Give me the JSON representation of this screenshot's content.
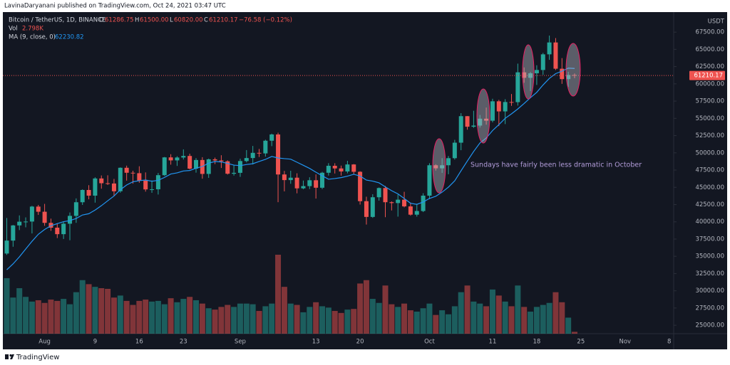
{
  "header": {
    "publisher": "LavinaDaryanani published on TradingView.com, Oct 24, 2021 03:47 UTC"
  },
  "footer": {
    "brand": "TradingView"
  },
  "chart_data": {
    "type": "candlestick",
    "title": "Bitcoin / TetherUS, 1D, BINANCE",
    "legend": {
      "o": "O",
      "h": "H",
      "l": "L",
      "c": "C",
      "high": "61500.00",
      "low": "60820.00",
      "change": "−76.58 (−0.12%)",
      "vol": "Vol",
      "volume_label": "2.798K"
    },
    "up_color": "#26a69a",
    "down_color": "#ef5350",
    "price_unit": "USDT",
    "annotation": "Sundays have fairly been less dramatic in October",
    "categories": [
      null,
      null,
      null,
      null,
      null,
      null,
      "Aug",
      null,
      null,
      null,
      null,
      null,
      null,
      null,
      "9",
      null,
      null,
      null,
      null,
      null,
      null,
      "16",
      null,
      null,
      null,
      null,
      null,
      null,
      "23",
      null,
      null,
      null,
      null,
      null,
      null,
      null,
      null,
      "Sep",
      null,
      null,
      null,
      null,
      null,
      null,
      null,
      null,
      null,
      null,
      null,
      "13",
      null,
      null,
      null,
      null,
      null,
      null,
      "20",
      null,
      null,
      null,
      null,
      null,
      null,
      null,
      null,
      null,
      null,
      "Oct",
      null,
      null,
      null,
      null,
      null,
      null,
      null,
      null,
      null,
      "11",
      null,
      null,
      null,
      null,
      null,
      null,
      "18",
      null,
      null,
      null,
      null,
      null,
      null,
      "25",
      null,
      null,
      null,
      null,
      null,
      null,
      "Nov",
      null,
      null,
      null,
      null,
      null,
      null,
      "8"
    ],
    "open": [
      35399,
      37276,
      39475,
      40016,
      40036,
      42206,
      41461,
      39846,
      39147,
      38207,
      39723,
      40862,
      42836,
      44614,
      43792,
      46284,
      45593,
      45551,
      44429,
      47834,
      47112,
      47047,
      45972,
      44696,
      44715,
      46760,
      49339,
      48905,
      49321,
      49546,
      47706,
      48960,
      46942,
      49058,
      48897,
      48767,
      46970,
      47100,
      48810,
      49246,
      49999,
      49915,
      51756,
      52663,
      46863,
      46048,
      46395,
      44851,
      45174,
      46026,
      44940,
      47112,
      48121,
      47738,
      47300,
      48314,
      47250,
      42990,
      40708,
      43560,
      44895,
      42840,
      42717,
      43208,
      42235,
      41034,
      41564,
      43791,
      48199,
      47753,
      48200,
      49224,
      51471,
      55315,
      53785,
      53951,
      54949,
      54659,
      57471,
      56006,
      57367,
      57347,
      61672,
      60875,
      61528,
      62009,
      64280,
      66001,
      62193,
      60688,
      61286.75,
      null,
      null,
      null,
      null,
      null,
      null,
      null,
      null,
      null,
      null,
      null,
      null,
      null,
      null,
      null
    ],
    "high": [
      40550,
      39543,
      40925,
      40640,
      42316,
      42448,
      42599,
      40459,
      39780,
      39969,
      41350,
      43392,
      44700,
      45310,
      46454,
      46718,
      46743,
      46218,
      47886,
      48144,
      47400,
      48053,
      47161,
      46000,
      47078,
      49400,
      49800,
      49500,
      50500,
      49875,
      49226,
      49368,
      49165,
      49309,
      49653,
      48907,
      48246,
      49150,
      50400,
      51000,
      50558,
      51900,
      52780,
      52920,
      47381,
      47400,
      47031,
      45980,
      46460,
      46876,
      47250,
      48500,
      48486,
      48150,
      48843,
      48372,
      47328,
      43639,
      44000,
      44978,
      45200,
      42966,
      43950,
      44350,
      42780,
      42620,
      44141,
      48495,
      48350,
      49228,
      49536,
      51886,
      55750,
      55332,
      56100,
      55489,
      56561,
      57839,
      57680,
      57777,
      58532,
      62933,
      62378,
      61718,
      62695,
      64486,
      67000,
      66639,
      63732,
      61747,
      61500,
      null,
      null,
      null,
      null,
      null,
      null,
      null,
      null,
      null,
      null,
      null,
      null,
      null,
      null,
      null
    ],
    "low": [
      35205,
      36383,
      38800,
      39200,
      38313,
      41000,
      39422,
      38691,
      37642,
      37508,
      37332,
      39853,
      42446,
      43261,
      42779,
      44800,
      45341,
      43770,
      44217,
      45971,
      45525,
      45660,
      44376,
      44203,
      43955,
      46644,
      48285,
      48102,
      49028,
      47600,
      47123,
      46250,
      46370,
      48370,
      47801,
      46850,
      46700,
      46512,
      48620,
      48316,
      49400,
      49450,
      50969,
      42843,
      44412,
      45513,
      44132,
      44722,
      44742,
      43370,
      44750,
      46700,
      47000,
      46700,
      47033,
      46829,
      42500,
      39600,
      40570,
      43069,
      40675,
      41646,
      40750,
      42098,
      40888,
      40753,
      41410,
      43283,
      47430,
      47088,
      46891,
      49022,
      50382,
      53357,
      53617,
      53661,
      54080,
      54415,
      53879,
      54167,
      56818,
      56850,
      60150,
      58963,
      59844,
      61322,
      63481,
      62000,
      60000,
      59562,
      60820,
      null,
      null,
      null,
      null,
      null,
      null,
      null,
      null,
      null,
      null,
      null,
      null,
      null,
      null,
      null
    ],
    "close": [
      37276,
      39475,
      40016,
      40036,
      42206,
      41461,
      39846,
      39147,
      38207,
      39723,
      40862,
      42836,
      44614,
      43792,
      46284,
      45593,
      45551,
      44429,
      47834,
      47112,
      47047,
      45972,
      44696,
      44715,
      46760,
      49339,
      48905,
      49321,
      49546,
      47706,
      48960,
      46942,
      49058,
      48897,
      48767,
      46970,
      47100,
      48810,
      49246,
      49999,
      49915,
      51756,
      52663,
      46863,
      46048,
      46395,
      44851,
      45174,
      46026,
      44940,
      47112,
      48121,
      47738,
      47300,
      48314,
      47250,
      42990,
      40708,
      43560,
      44895,
      42840,
      42717,
      43208,
      42235,
      41034,
      41564,
      43791,
      48199,
      47753,
      48200,
      49224,
      51471,
      55315,
      53785,
      53951,
      54949,
      54659,
      57471,
      56006,
      57367,
      57347,
      61672,
      60875,
      61528,
      62009,
      64280,
      66001,
      62193,
      60688,
      61286,
      61210.17,
      null,
      null,
      null,
      null,
      null,
      null,
      null,
      null,
      null,
      null,
      null,
      null,
      null,
      null,
      null
    ],
    "volume": [
      83000,
      54000,
      68000,
      55000,
      48000,
      50000,
      46000,
      51000,
      49000,
      52000,
      44000,
      62000,
      80000,
      74000,
      70000,
      68000,
      67000,
      54000,
      57000,
      49000,
      43000,
      49000,
      51000,
      48000,
      49000,
      44000,
      53000,
      47000,
      52000,
      55000,
      50000,
      45000,
      38000,
      36000,
      40000,
      43000,
      40000,
      45000,
      45000,
      44000,
      34000,
      41000,
      45000,
      118000,
      70000,
      45000,
      43000,
      32000,
      40000,
      47000,
      41000,
      39000,
      34000,
      31000,
      36000,
      37000,
      75000,
      80000,
      52000,
      46000,
      72000,
      44000,
      40000,
      45000,
      35000,
      33000,
      38000,
      45000,
      28000,
      35000,
      29000,
      41000,
      62000,
      72000,
      48000,
      45000,
      41000,
      66000,
      57000,
      48000,
      41000,
      72000,
      40000,
      33000,
      40000,
      43000,
      46000,
      62000,
      47000,
      24000,
      2798,
      null,
      null,
      null,
      null,
      null,
      null,
      null,
      null,
      null,
      null,
      null,
      null,
      null,
      null,
      null
    ],
    "ma": {
      "name": "MA (9, close, 0)",
      "color": "#2196f3",
      "values": [
        33040,
        33900,
        34920,
        36050,
        37170,
        38190,
        38890,
        39430,
        39740,
        40020,
        40170,
        40480,
        40990,
        41170,
        41700,
        42340,
        43050,
        43740,
        44640,
        45340,
        45800,
        45960,
        46060,
        45880,
        46010,
        46430,
        46930,
        47100,
        47370,
        47440,
        47770,
        48020,
        48510,
        48740,
        48680,
        48460,
        48220,
        48140,
        48310,
        48420,
        48750,
        49050,
        49470,
        49260,
        49160,
        49080,
        48640,
        48190,
        47740,
        47190,
        46670,
        46170,
        46270,
        46410,
        46620,
        46890,
        46640,
        46050,
        45900,
        45650,
        45070,
        44510,
        44050,
        43380,
        42690,
        42530,
        42870,
        43390,
        43700,
        44300,
        45020,
        45940,
        47390,
        48810,
        50190,
        51430,
        52150,
        53230,
        54090,
        55000,
        55650,
        56360,
        57150,
        57990,
        58770,
        59840,
        60790,
        61480,
        61840,
        62280,
        62230.82,
        null,
        null,
        null,
        null,
        null,
        null,
        null,
        null,
        null,
        null,
        null,
        null,
        null,
        null,
        null
      ]
    },
    "ylim": [
      23850,
      70300
    ],
    "yticks": [
      {
        "value": 25000,
        "label": "25000.00"
      },
      {
        "value": 27500,
        "label": "27500.00"
      },
      {
        "value": 30000,
        "label": "30000.00"
      },
      {
        "value": 32500,
        "label": "32500.00"
      },
      {
        "value": 35000,
        "label": "35000.00"
      },
      {
        "value": 37500,
        "label": "37500.00"
      },
      {
        "value": 40000,
        "label": "40000.00"
      },
      {
        "value": 42500,
        "label": "42500.00"
      },
      {
        "value": 45000,
        "label": "45000.00"
      },
      {
        "value": 47500,
        "label": "47500.00"
      },
      {
        "value": 50000,
        "label": "50000.00"
      },
      {
        "value": 52500,
        "label": "52500.00"
      },
      {
        "value": 55000,
        "label": "55000.00"
      },
      {
        "value": 57500,
        "label": "57500.00"
      },
      {
        "value": 60000,
        "label": "60000.00"
      },
      {
        "value": 62500,
        "label": "62500.00"
      },
      {
        "value": 65000,
        "label": "65000.00"
      },
      {
        "value": 67500,
        "label": "67500.00"
      }
    ]
  }
}
